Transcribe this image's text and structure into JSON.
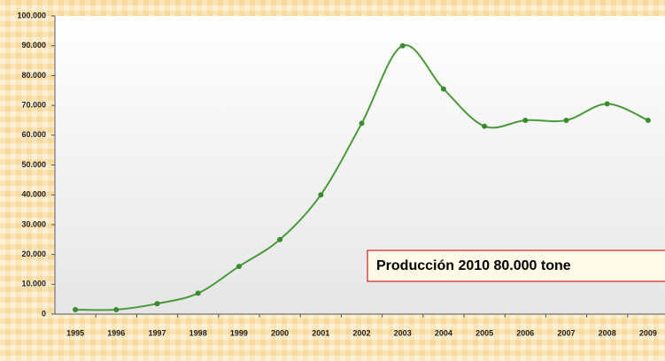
{
  "chart_data": {
    "type": "line",
    "categories": [
      "1995",
      "1996",
      "1997",
      "1998",
      "1999",
      "2000",
      "2001",
      "2002",
      "2003",
      "2004",
      "2005",
      "2006",
      "2007",
      "2008",
      "2009"
    ],
    "values": [
      1500,
      1500,
      3500,
      7000,
      16000,
      25000,
      40000,
      64000,
      90000,
      75500,
      63000,
      65000,
      65000,
      70500,
      65000
    ],
    "color": "#4a9a3a",
    "ylim": [
      0,
      100000
    ],
    "yticks": [
      0,
      {
        "value": 10000,
        "label": "10.000"
      },
      {
        "value": 20000,
        "label": "20.000"
      },
      {
        "value": 30000,
        "label": "30.000"
      },
      {
        "value": 40000,
        "label": "40.000"
      },
      {
        "value": 50000,
        "label": "50.000"
      },
      {
        "value": 60000,
        "label": "60.000"
      },
      {
        "value": 70000,
        "label": "70.000"
      },
      {
        "value": 80000,
        "label": "80.000"
      },
      {
        "value": 90000,
        "label": "90.000"
      },
      {
        "value": 100000,
        "label": "100.000"
      }
    ],
    "annotation": "Producción 2010  80.000 tone",
    "grid": false
  }
}
